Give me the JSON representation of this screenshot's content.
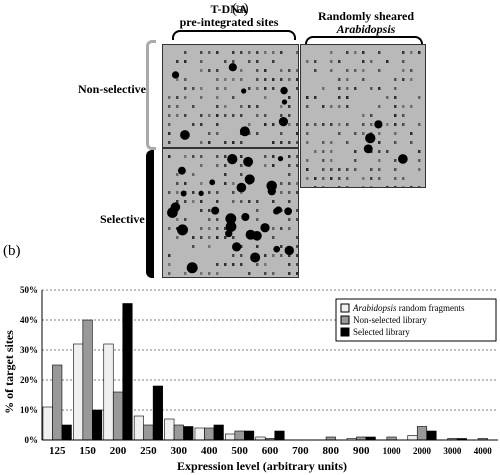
{
  "panel_a": {
    "label": "(a)",
    "header_tdna_line1": "T-DNA",
    "header_tdna_line2": "pre-integrated sites",
    "header_random_line1": "Randomly sheared",
    "header_random_line2": "Arabidopsis",
    "row_nonselective": "Non-selective",
    "row_selective": "Selective"
  },
  "panel_b": {
    "label": "(b)"
  },
  "chart_data": {
    "type": "bar",
    "categories": [
      "125",
      "150",
      "200",
      "250",
      "300",
      "400",
      "500",
      "600",
      "700",
      "800",
      "900",
      "1000",
      "2000",
      "3000",
      "4000"
    ],
    "series": [
      {
        "name": "Arabidopsis random fragments",
        "color": "#f0f0f0",
        "values": [
          11,
          32,
          32,
          8,
          7,
          4,
          2,
          1,
          0,
          0,
          0.5,
          0,
          1.5,
          0,
          0
        ]
      },
      {
        "name": "Non-selected library",
        "color": "#999999",
        "values": [
          25,
          40,
          16,
          5,
          5,
          4,
          3,
          0.5,
          0,
          1,
          1,
          1,
          4.5,
          0.5,
          0.5
        ]
      },
      {
        "name": "Selected library",
        "color": "#000000",
        "values": [
          5,
          10,
          45.5,
          18,
          4.5,
          5,
          3,
          3,
          0,
          0,
          1,
          0,
          3,
          0.5,
          0
        ]
      }
    ],
    "ylabel": "% of target sites",
    "xlabel": "Expression level (arbitrary units)",
    "ylim": [
      0,
      50
    ],
    "yticks": [
      "0%",
      "10%",
      "20%",
      "30%",
      "40%",
      "50%"
    ],
    "grid": true,
    "legend_position": "top-right"
  }
}
